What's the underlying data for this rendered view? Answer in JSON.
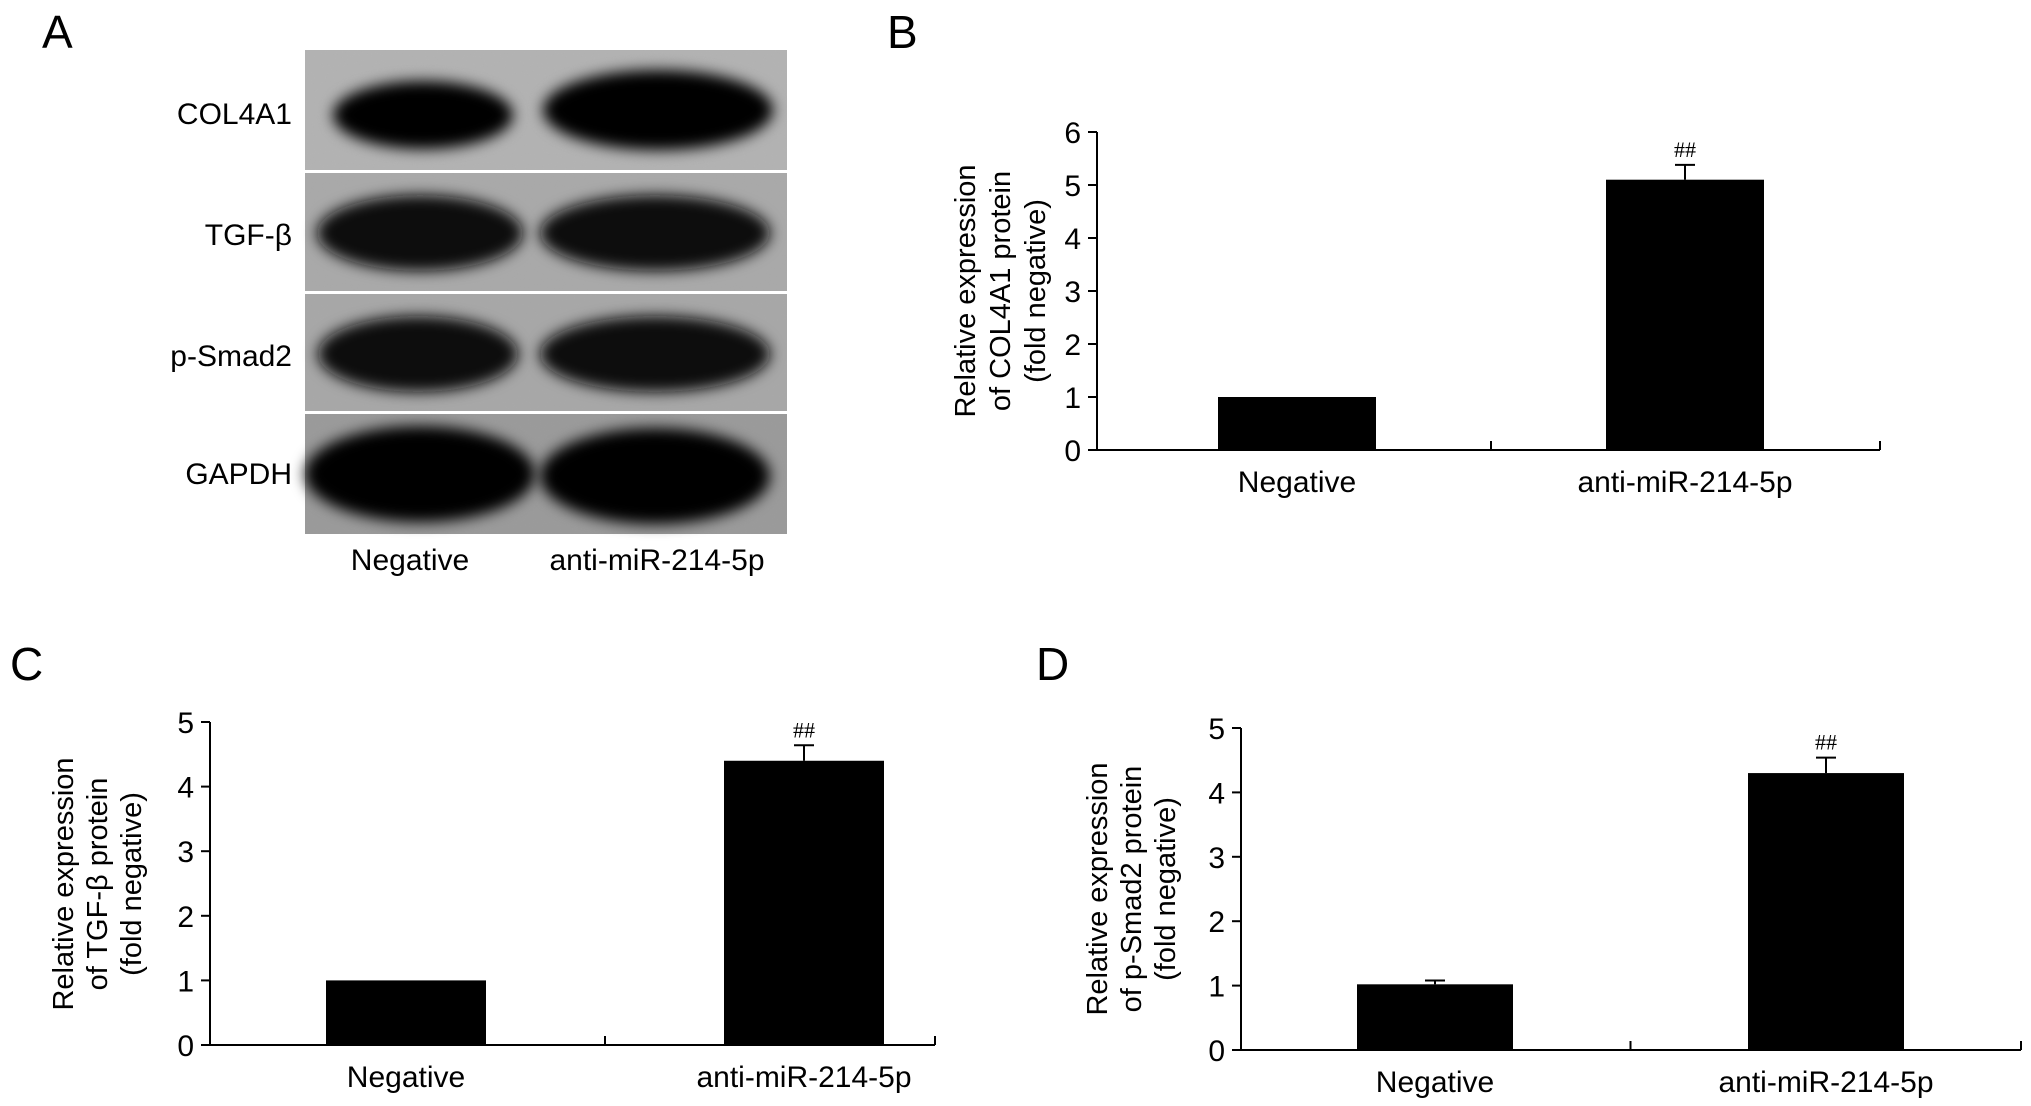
{
  "panels": {
    "a": {
      "letter": "A",
      "rows": [
        "COL4A1",
        "TGF-β",
        "p-Smad2",
        "GAPDH"
      ],
      "lanes": [
        "Negative",
        "anti-miR-214-5p"
      ]
    }
  },
  "chart_data": [
    {
      "type": "bar",
      "panel": "B",
      "categories": [
        "Negative",
        "anti-miR-214-5p"
      ],
      "values": [
        1.0,
        5.1
      ],
      "errors": [
        0,
        0.28
      ],
      "annotations": [
        "",
        "##"
      ],
      "ylabel_lines": [
        "Relative expression",
        "of COL4A1 protein",
        "(fold negative)"
      ],
      "ylim": [
        0,
        6
      ],
      "yticks": [
        "0",
        "1",
        "2",
        "3",
        "4",
        "5",
        "6"
      ],
      "bar_color": "#000000"
    },
    {
      "type": "bar",
      "panel": "C",
      "categories": [
        "Negative",
        "anti-miR-214-5p"
      ],
      "values": [
        1.0,
        4.4
      ],
      "errors": [
        0,
        0.24
      ],
      "annotations": [
        "",
        "##"
      ],
      "ylabel_lines": [
        "Relative expression",
        "of TGF-β protein",
        "(fold negative)"
      ],
      "ylim": [
        0,
        5
      ],
      "yticks": [
        "0",
        "1",
        "2",
        "3",
        "4",
        "5"
      ],
      "bar_color": "#000000"
    },
    {
      "type": "bar",
      "panel": "D",
      "categories": [
        "Negative",
        "anti-miR-214-5p"
      ],
      "values": [
        1.02,
        4.3
      ],
      "errors": [
        0.06,
        0.24
      ],
      "annotations": [
        "",
        "##"
      ],
      "ylabel_lines": [
        "Relative expression",
        "of p-Smad2 protein",
        "(fold negative)"
      ],
      "ylim": [
        0,
        5
      ],
      "yticks": [
        "0",
        "1",
        "2",
        "3",
        "4",
        "5"
      ],
      "bar_color": "#000000"
    }
  ]
}
